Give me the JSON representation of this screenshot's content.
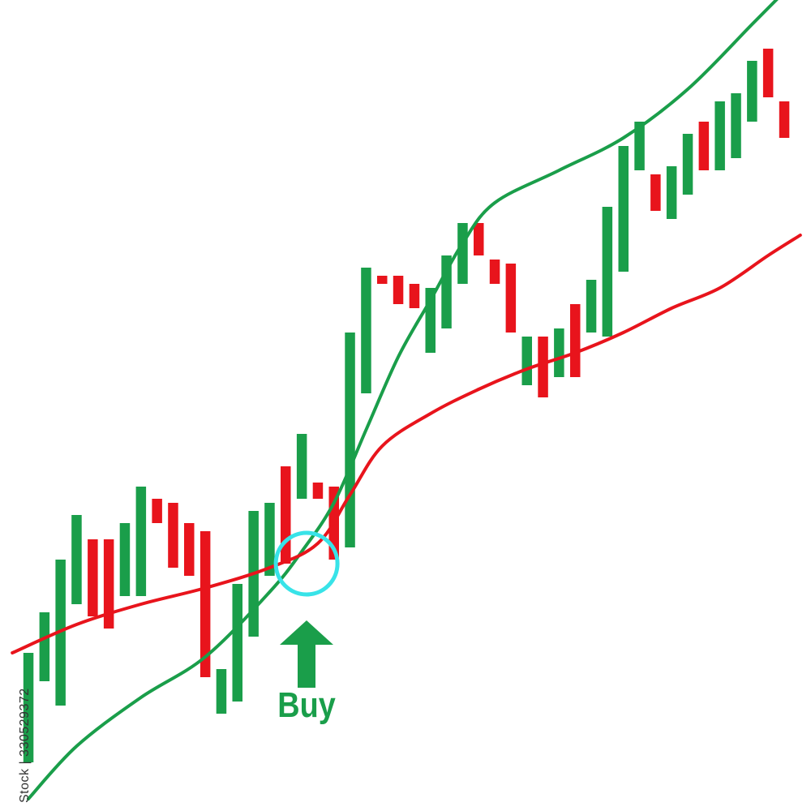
{
  "chart_data": {
    "type": "candlestick",
    "title": "",
    "xlabel": "",
    "ylabel": "",
    "grid": false,
    "ylim": [
      0,
      100
    ],
    "colors": {
      "up": "#1a9e4a",
      "down": "#e8141c",
      "fast_ma": "#1a9e4a",
      "slow_ma": "#e8141c",
      "signal_circle": "#38e3e8",
      "arrow": "#1a9e4a"
    },
    "candles": [
      {
        "dir": "up",
        "open": 6,
        "close": 19.5
      },
      {
        "dir": "up",
        "open": 16,
        "close": 24.5
      },
      {
        "dir": "up",
        "open": 13,
        "close": 31
      },
      {
        "dir": "up",
        "open": 25.5,
        "close": 36.5
      },
      {
        "dir": "down",
        "open": 33.5,
        "close": 24
      },
      {
        "dir": "down",
        "open": 33.5,
        "close": 22.5
      },
      {
        "dir": "up",
        "open": 26.5,
        "close": 35.5
      },
      {
        "dir": "up",
        "open": 26.5,
        "close": 40
      },
      {
        "dir": "down",
        "open": 38.5,
        "close": 35.5
      },
      {
        "dir": "down",
        "open": 38,
        "close": 30
      },
      {
        "dir": "down",
        "open": 35.5,
        "close": 29
      },
      {
        "dir": "down",
        "open": 34.5,
        "close": 16.5
      },
      {
        "dir": "up",
        "open": 12,
        "close": 17.5
      },
      {
        "dir": "up",
        "open": 13.5,
        "close": 28
      },
      {
        "dir": "up",
        "open": 21.5,
        "close": 37
      },
      {
        "dir": "up",
        "open": 29,
        "close": 38
      },
      {
        "dir": "down",
        "open": 42.5,
        "close": 30.5
      },
      {
        "dir": "up",
        "open": 38.5,
        "close": 46.5
      },
      {
        "dir": "down",
        "open": 40.5,
        "close": 38.5
      },
      {
        "dir": "down",
        "open": 40,
        "close": 31
      },
      {
        "dir": "up",
        "open": 32.5,
        "close": 59
      },
      {
        "dir": "up",
        "open": 51.5,
        "close": 67
      },
      {
        "dir": "down",
        "open": 66,
        "close": 65
      },
      {
        "dir": "down",
        "open": 66,
        "close": 62.5
      },
      {
        "dir": "down",
        "open": 65,
        "close": 62
      },
      {
        "dir": "up",
        "open": 56.5,
        "close": 64.5
      },
      {
        "dir": "up",
        "open": 59.5,
        "close": 68.5
      },
      {
        "dir": "up",
        "open": 65,
        "close": 72.5
      },
      {
        "dir": "down",
        "open": 72.5,
        "close": 68.5
      },
      {
        "dir": "down",
        "open": 68,
        "close": 65
      },
      {
        "dir": "down",
        "open": 67.5,
        "close": 59
      },
      {
        "dir": "up",
        "open": 52.5,
        "close": 58.5
      },
      {
        "dir": "down",
        "open": 58.5,
        "close": 51
      },
      {
        "dir": "up",
        "open": 53.5,
        "close": 59.5
      },
      {
        "dir": "down",
        "open": 62.5,
        "close": 53.5
      },
      {
        "dir": "up",
        "open": 59,
        "close": 65.5
      },
      {
        "dir": "up",
        "open": 58.5,
        "close": 74.5
      },
      {
        "dir": "up",
        "open": 66.5,
        "close": 82
      },
      {
        "dir": "up",
        "open": 79,
        "close": 85
      },
      {
        "dir": "down",
        "open": 78.5,
        "close": 74
      },
      {
        "dir": "up",
        "open": 73,
        "close": 79.5
      },
      {
        "dir": "up",
        "open": 76,
        "close": 83.5
      },
      {
        "dir": "down",
        "open": 85,
        "close": 79
      },
      {
        "dir": "up",
        "open": 79,
        "close": 87.5
      },
      {
        "dir": "up",
        "open": 80.5,
        "close": 88.5
      },
      {
        "dir": "up",
        "open": 85,
        "close": 92.5
      },
      {
        "dir": "down",
        "open": 94,
        "close": 88
      },
      {
        "dir": "down",
        "open": 87.5,
        "close": 83
      }
    ],
    "moving_averages": [
      {
        "key": "fast_ma",
        "points": [
          [
            0,
            1.5
          ],
          [
            3,
            8
          ],
          [
            7,
            14
          ],
          [
            11,
            19
          ],
          [
            15,
            27
          ],
          [
            17,
            32
          ],
          [
            19,
            38
          ],
          [
            21,
            47
          ],
          [
            23,
            56
          ],
          [
            25,
            63
          ],
          [
            27,
            70
          ],
          [
            29,
            75
          ],
          [
            33,
            79
          ],
          [
            37,
            83
          ],
          [
            41,
            89
          ],
          [
            45,
            97
          ],
          [
            47.5,
            102
          ]
        ]
      },
      {
        "key": "slow_ma",
        "points": [
          [
            -1,
            19.5
          ],
          [
            3,
            23
          ],
          [
            7,
            25.5
          ],
          [
            11,
            27.5
          ],
          [
            15,
            30
          ],
          [
            18,
            33
          ],
          [
            20,
            39
          ],
          [
            22,
            45
          ],
          [
            25,
            49
          ],
          [
            28,
            52
          ],
          [
            31,
            54.5
          ],
          [
            34,
            56.5
          ],
          [
            37,
            59
          ],
          [
            40,
            62
          ],
          [
            43,
            64.5
          ],
          [
            46,
            68.5
          ],
          [
            48,
            71
          ]
        ]
      }
    ],
    "signal": {
      "index": 17.3,
      "value": 30.5,
      "label": "Buy"
    }
  },
  "side_text": "Stock | 330529372"
}
